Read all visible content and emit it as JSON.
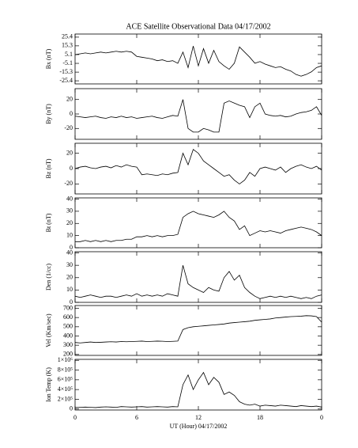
{
  "chart_data": [
    {
      "type": "line",
      "title": "ACE Satellite Observational Data   04/17/2002",
      "ylabel": "Bx (nT)",
      "color": "#000000",
      "xlim": [
        0,
        24
      ],
      "ylim": [
        -29,
        29
      ],
      "yticks": [
        -25.4,
        -15.3,
        -5.1,
        5.1,
        15.3,
        25.4
      ],
      "x": [
        0,
        0.5,
        1,
        1.5,
        2,
        2.5,
        3,
        3.5,
        4,
        4.5,
        5,
        5.5,
        6,
        6.5,
        7,
        7.5,
        8,
        8.5,
        9,
        9.5,
        10,
        10.5,
        11,
        11.5,
        12,
        12.5,
        13,
        13.5,
        14,
        14.5,
        15,
        15.5,
        16,
        16.5,
        17,
        17.5,
        18,
        18.5,
        19,
        19.5,
        20,
        20.5,
        21,
        21.5,
        22,
        22.5,
        23,
        23.5,
        24
      ],
      "values": [
        5,
        6,
        7,
        6,
        7,
        8,
        7,
        8,
        9,
        8,
        9,
        8,
        3,
        2,
        1,
        0,
        -2,
        -1,
        -3,
        -2,
        -5,
        8,
        -10,
        15,
        -8,
        12,
        -5,
        10,
        -3,
        -8,
        -12,
        -5,
        14,
        8,
        2,
        -5,
        -3,
        -6,
        -8,
        -10,
        -9,
        -12,
        -14,
        -18,
        -20,
        -18,
        -15,
        -10,
        -8
      ]
    },
    {
      "type": "line",
      "ylabel": "By (nT)",
      "color": "#000000",
      "xlim": [
        0,
        24
      ],
      "ylim": [
        -35,
        35
      ],
      "yticks": [
        -20,
        0,
        20
      ],
      "x": [
        0,
        0.5,
        1,
        1.5,
        2,
        2.5,
        3,
        3.5,
        4,
        4.5,
        5,
        5.5,
        6,
        6.5,
        7,
        7.5,
        8,
        8.5,
        9,
        9.5,
        10,
        10.5,
        11,
        11.5,
        12,
        12.5,
        13,
        13.5,
        14,
        14.5,
        15,
        15.5,
        16,
        16.5,
        17,
        17.5,
        18,
        18.5,
        19,
        19.5,
        20,
        20.5,
        21,
        21.5,
        22,
        22.5,
        23,
        23.5,
        24
      ],
      "values": [
        -3,
        -4,
        -5,
        -4,
        -3,
        -5,
        -6,
        -4,
        -5,
        -3,
        -5,
        -4,
        -6,
        -5,
        -4,
        -3,
        -5,
        -6,
        -4,
        -2,
        -3,
        20,
        -20,
        -25,
        -25,
        -20,
        -22,
        -25,
        -25,
        15,
        18,
        15,
        12,
        10,
        -5,
        10,
        15,
        0,
        -2,
        -3,
        -2,
        -4,
        -3,
        0,
        2,
        3,
        5,
        10,
        -2
      ]
    },
    {
      "type": "line",
      "ylabel": "Bz (nT)",
      "color": "#000000",
      "xlim": [
        0,
        24
      ],
      "ylim": [
        -33,
        33
      ],
      "yticks": [
        -20,
        0,
        20
      ],
      "x": [
        0,
        0.5,
        1,
        1.5,
        2,
        2.5,
        3,
        3.5,
        4,
        4.5,
        5,
        5.5,
        6,
        6.5,
        7,
        7.5,
        8,
        8.5,
        9,
        9.5,
        10,
        10.5,
        11,
        11.5,
        12,
        12.5,
        13,
        13.5,
        14,
        14.5,
        15,
        15.5,
        16,
        16.5,
        17,
        17.5,
        18,
        18.5,
        19,
        19.5,
        20,
        20.5,
        21,
        21.5,
        22,
        22.5,
        23,
        23.5,
        24
      ],
      "values": [
        0,
        2,
        3,
        1,
        0,
        2,
        3,
        1,
        4,
        2,
        5,
        3,
        2,
        -8,
        -7,
        -8,
        -9,
        -7,
        -8,
        -6,
        -5,
        20,
        5,
        25,
        20,
        10,
        5,
        0,
        -5,
        -10,
        -8,
        -15,
        -20,
        -15,
        -5,
        -10,
        0,
        2,
        0,
        -2,
        2,
        -5,
        0,
        3,
        5,
        2,
        0,
        3,
        -2
      ]
    },
    {
      "type": "line",
      "ylabel": "Bt (nT)",
      "color": "#000000",
      "xlim": [
        0,
        24
      ],
      "ylim": [
        0,
        41
      ],
      "yticks": [
        0,
        10,
        20,
        30,
        40
      ],
      "x": [
        0,
        0.5,
        1,
        1.5,
        2,
        2.5,
        3,
        3.5,
        4,
        4.5,
        5,
        5.5,
        6,
        6.5,
        7,
        7.5,
        8,
        8.5,
        9,
        9.5,
        10,
        10.5,
        11,
        11.5,
        12,
        12.5,
        13,
        13.5,
        14,
        14.5,
        15,
        15.5,
        16,
        16.5,
        17,
        17.5,
        18,
        18.5,
        19,
        19.5,
        20,
        20.5,
        21,
        21.5,
        22,
        22.5,
        23,
        23.5,
        24
      ],
      "values": [
        5,
        5,
        6,
        5,
        6,
        5,
        6,
        5,
        6,
        6,
        7,
        7,
        9,
        9,
        10,
        9,
        10,
        9,
        10,
        10,
        11,
        25,
        28,
        30,
        28,
        27,
        26,
        25,
        27,
        30,
        25,
        22,
        15,
        18,
        10,
        12,
        14,
        13,
        14,
        13,
        12,
        14,
        15,
        16,
        17,
        16,
        15,
        13,
        10
      ]
    },
    {
      "type": "line",
      "ylabel": "Den (1/cc)",
      "color": "#000000",
      "xlim": [
        0,
        24
      ],
      "ylim": [
        0,
        41
      ],
      "yticks": [
        0,
        10,
        20,
        30,
        40
      ],
      "x": [
        0,
        0.5,
        1,
        1.5,
        2,
        2.5,
        3,
        3.5,
        4,
        4.5,
        5,
        5.5,
        6,
        6.5,
        7,
        7.5,
        8,
        8.5,
        9,
        9.5,
        10,
        10.5,
        11,
        11.5,
        12,
        12.5,
        13,
        13.5,
        14,
        14.5,
        15,
        15.5,
        16,
        16.5,
        17,
        17.5,
        18,
        18.5,
        19,
        19.5,
        20,
        20.5,
        21,
        21.5,
        22,
        22.5,
        23,
        23.5,
        24
      ],
      "values": [
        5,
        4,
        5,
        6,
        5,
        4,
        5,
        5,
        4,
        5,
        6,
        5,
        7,
        5,
        6,
        5,
        6,
        5,
        7,
        6,
        5,
        30,
        15,
        12,
        10,
        8,
        12,
        10,
        9,
        20,
        25,
        18,
        22,
        12,
        8,
        5,
        3,
        4,
        5,
        4,
        5,
        4,
        5,
        4,
        3,
        4,
        3,
        5,
        6
      ]
    },
    {
      "type": "line",
      "ylabel": "Vel (Km/sec)",
      "color": "#000000",
      "xlim": [
        0,
        24
      ],
      "ylim": [
        190,
        730
      ],
      "yticks": [
        200,
        300,
        400,
        500,
        600,
        700
      ],
      "x": [
        0,
        0.5,
        1,
        1.5,
        2,
        2.5,
        3,
        3.5,
        4,
        4.5,
        5,
        5.5,
        6,
        6.5,
        7,
        7.5,
        8,
        8.5,
        9,
        9.5,
        10,
        10.5,
        11,
        11.5,
        12,
        12.5,
        13,
        13.5,
        14,
        14.5,
        15,
        15.5,
        16,
        16.5,
        17,
        17.5,
        18,
        18.5,
        19,
        19.5,
        20,
        20.5,
        21,
        21.5,
        22,
        22.5,
        23,
        23.5,
        24
      ],
      "values": [
        330,
        325,
        330,
        335,
        330,
        332,
        335,
        338,
        335,
        340,
        338,
        340,
        342,
        345,
        340,
        342,
        345,
        343,
        340,
        342,
        345,
        470,
        490,
        500,
        505,
        510,
        515,
        520,
        525,
        530,
        540,
        545,
        550,
        555,
        560,
        570,
        575,
        580,
        585,
        595,
        600,
        605,
        610,
        612,
        615,
        620,
        618,
        610,
        550
      ]
    },
    {
      "type": "line",
      "ylabel": "Ion Temp (K)",
      "xlabel": "UT (Hour)  04/17/2002",
      "color": "#000000",
      "xlim": [
        0,
        24
      ],
      "ylim": [
        -20000,
        1020000
      ],
      "yticks": [
        0,
        {
          "value": 200000,
          "label": "2×10⁵"
        },
        {
          "value": 400000,
          "label": "4×10⁵"
        },
        {
          "value": 600000,
          "label": "6×10⁵"
        },
        {
          "value": 800000,
          "label": "8×10⁵"
        },
        {
          "value": 1000000,
          "label": "1×10⁶"
        }
      ],
      "xticks": [
        0,
        6,
        12,
        18,
        {
          "value": 24,
          "label": "0"
        }
      ],
      "x": [
        0,
        0.5,
        1,
        1.5,
        2,
        2.5,
        3,
        3.5,
        4,
        4.5,
        5,
        5.5,
        6,
        6.5,
        7,
        7.5,
        8,
        8.5,
        9,
        9.5,
        10,
        10.5,
        11,
        11.5,
        12,
        12.5,
        13,
        13.5,
        14,
        14.5,
        15,
        15.5,
        16,
        16.5,
        17,
        17.5,
        18,
        18.5,
        19,
        19.5,
        20,
        20.5,
        21,
        21.5,
        22,
        22.5,
        23,
        23.5,
        24
      ],
      "values": [
        30000,
        35000,
        40000,
        35000,
        30000,
        40000,
        45000,
        40000,
        35000,
        50000,
        45000,
        40000,
        45000,
        50000,
        40000,
        45000,
        50000,
        45000,
        40000,
        50000,
        45000,
        500000,
        700000,
        400000,
        600000,
        750000,
        500000,
        650000,
        550000,
        300000,
        350000,
        280000,
        150000,
        100000,
        80000,
        100000,
        60000,
        80000,
        70000,
        60000,
        80000,
        70000,
        60000,
        50000,
        70000,
        60000,
        50000,
        60000,
        40000
      ]
    }
  ]
}
